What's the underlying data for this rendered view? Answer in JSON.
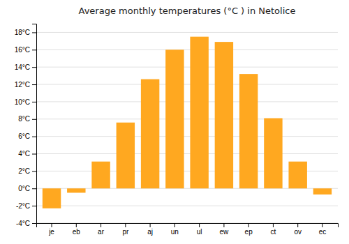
{
  "chart_data": {
    "type": "bar",
    "title": "Average monthly temperatures (°C ) in Netolice",
    "categories": [
      "je",
      "eb",
      "ar",
      "pr",
      "aj",
      "un",
      "ul",
      "ew",
      "ep",
      "ct",
      "ov",
      "ec"
    ],
    "values": [
      -2.3,
      -0.5,
      3.1,
      7.6,
      12.6,
      16.0,
      17.5,
      16.9,
      13.2,
      8.1,
      3.1,
      -0.7
    ],
    "color": "#FFA820",
    "ylim": [
      -4,
      19
    ],
    "yticks": [
      {
        "value": -4,
        "label": "-4°C"
      },
      {
        "value": -2,
        "label": "-2°C"
      },
      {
        "value": 0,
        "label": "0°C"
      },
      {
        "value": 2,
        "label": "2°C"
      },
      {
        "value": 4,
        "label": "4°C"
      },
      {
        "value": 6,
        "label": "6°C"
      },
      {
        "value": 8,
        "label": "8°C"
      },
      {
        "value": 10,
        "label": "10°C"
      },
      {
        "value": 12,
        "label": "12°C"
      },
      {
        "value": 14,
        "label": "14°C"
      },
      {
        "value": 16,
        "label": "16°C"
      },
      {
        "value": 18,
        "label": "18°C"
      }
    ],
    "grid": true
  }
}
